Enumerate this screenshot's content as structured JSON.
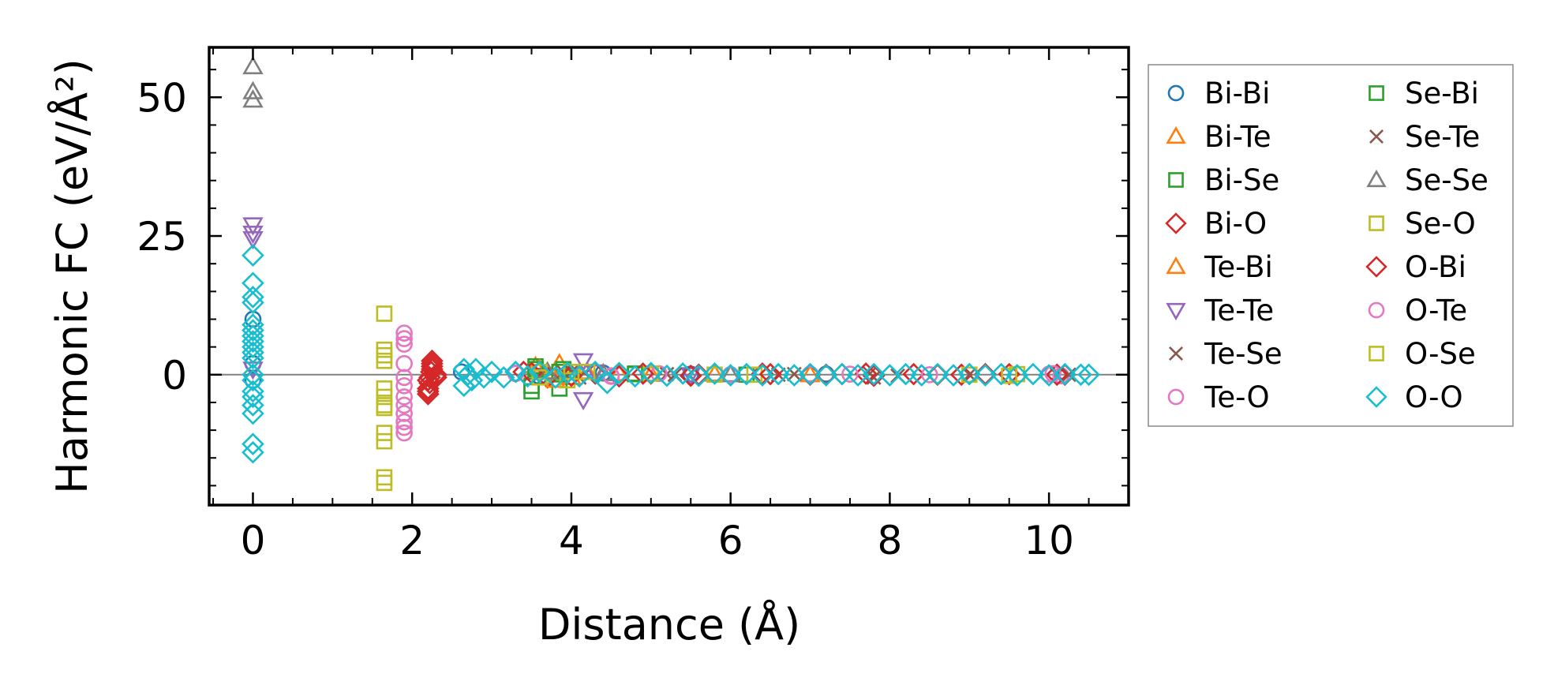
{
  "chart_data": {
    "type": "scatter",
    "title": "",
    "xlabel": "Distance (Å)",
    "ylabel": "Harmonic FC (eV/Å²)",
    "xlim": [
      -0.55,
      11.0
    ],
    "ylim": [
      -23.5,
      59.0
    ],
    "xticks": [
      0,
      2,
      4,
      6,
      8,
      10
    ],
    "yticks": [
      0,
      25,
      50
    ],
    "zero_line": true,
    "legend_position": "outside-right",
    "series": [
      {
        "name": "Bi-Bi",
        "marker": "circle",
        "color": "#1f77b4",
        "points": [
          [
            0,
            10.0
          ],
          [
            0,
            2.0
          ],
          [
            0,
            -1.0
          ],
          [
            2.62,
            0.5
          ],
          [
            3.6,
            -0.3
          ],
          [
            4.4,
            0.3
          ],
          [
            5.5,
            0.1
          ],
          [
            7.2,
            0.1
          ]
        ]
      },
      {
        "name": "Bi-Te",
        "marker": "triangle-up",
        "color": "#ff7f0e",
        "points": [
          [
            3.55,
            1.5
          ],
          [
            3.7,
            0.5
          ],
          [
            3.85,
            2.0
          ],
          [
            4.0,
            -0.5
          ],
          [
            4.6,
            0.2
          ],
          [
            5.8,
            0.1
          ],
          [
            7.0,
            0.0
          ]
        ]
      },
      {
        "name": "Bi-Se",
        "marker": "square",
        "color": "#2ca02c",
        "points": [
          [
            3.5,
            -3.0
          ],
          [
            3.55,
            1.5
          ],
          [
            3.85,
            -2.5
          ],
          [
            3.9,
            1.0
          ],
          [
            4.8,
            0.2
          ],
          [
            6.2,
            0.0
          ]
        ]
      },
      {
        "name": "Bi-O",
        "marker": "diamond",
        "color": "#d62728",
        "points": [
          [
            2.2,
            -3.5
          ],
          [
            2.2,
            -2.5
          ],
          [
            2.22,
            -1.5
          ],
          [
            2.22,
            -0.5
          ],
          [
            2.24,
            0.5
          ],
          [
            2.25,
            1.5
          ],
          [
            2.25,
            2.0
          ],
          [
            2.3,
            0.0
          ],
          [
            3.4,
            0.5
          ],
          [
            3.7,
            -0.5
          ],
          [
            4.3,
            0.2
          ],
          [
            4.6,
            -0.3
          ],
          [
            5.0,
            0.2
          ],
          [
            5.6,
            0.0
          ],
          [
            6.4,
            0.2
          ],
          [
            7.0,
            0.0
          ],
          [
            7.4,
            0.1
          ],
          [
            7.8,
            -0.2
          ],
          [
            8.3,
            0.1
          ],
          [
            8.9,
            0.0
          ],
          [
            9.5,
            0.1
          ],
          [
            10.2,
            0.0
          ]
        ]
      },
      {
        "name": "Te-Bi",
        "marker": "triangle-up",
        "color": "#ff7f0e",
        "points": [
          [
            3.6,
            1.0
          ],
          [
            3.8,
            -1.0
          ],
          [
            4.2,
            0.5
          ],
          [
            5.0,
            0.1
          ]
        ]
      },
      {
        "name": "Te-Te",
        "marker": "triangle-down",
        "color": "#9467bd",
        "points": [
          [
            0,
            27.0
          ],
          [
            0,
            25.5
          ],
          [
            0,
            24.5
          ],
          [
            0,
            1.0
          ],
          [
            4.15,
            2.5
          ],
          [
            4.15,
            -4.5
          ],
          [
            4.3,
            0.5
          ],
          [
            5.5,
            0.0
          ]
        ]
      },
      {
        "name": "Te-Se",
        "marker": "x",
        "color": "#8c564b",
        "points": [
          [
            3.9,
            0.5
          ],
          [
            4.1,
            -0.5
          ],
          [
            5.2,
            0.1
          ],
          [
            6.6,
            0.0
          ],
          [
            7.75,
            0.2
          ],
          [
            8.1,
            -0.2
          ],
          [
            10.1,
            0.0
          ]
        ]
      },
      {
        "name": "Te-O",
        "marker": "circle",
        "color": "#e377c2",
        "points": [
          [
            3.3,
            0.3
          ],
          [
            4.5,
            -0.3
          ],
          [
            5.1,
            0.2
          ],
          [
            6.0,
            0.0
          ],
          [
            7.0,
            0.1
          ],
          [
            8.5,
            0.0
          ],
          [
            10.0,
            0.1
          ],
          [
            10.15,
            -0.2
          ]
        ]
      },
      {
        "name": "Se-Bi",
        "marker": "square",
        "color": "#2ca02c",
        "points": [
          [
            3.5,
            -2.0
          ],
          [
            3.55,
            1.0
          ],
          [
            3.85,
            0.5
          ],
          [
            4.8,
            0.1
          ]
        ]
      },
      {
        "name": "Se-Te",
        "marker": "x",
        "color": "#8c564b",
        "points": [
          [
            4.0,
            0.5
          ],
          [
            5.3,
            0.0
          ],
          [
            6.8,
            0.1
          ],
          [
            7.8,
            -0.5
          ],
          [
            9.0,
            0.0
          ],
          [
            10.25,
            0.0
          ]
        ]
      },
      {
        "name": "Se-Se",
        "marker": "triangle-up",
        "color": "#7f7f7f",
        "points": [
          [
            0,
            55.5
          ],
          [
            0,
            51.0
          ],
          [
            0,
            49.5
          ],
          [
            3.7,
            0.5
          ],
          [
            4.4,
            0.2
          ],
          [
            6.0,
            0.0
          ]
        ]
      },
      {
        "name": "Se-O",
        "marker": "square",
        "color": "#bcbd22",
        "points": [
          [
            1.65,
            11.0
          ],
          [
            1.65,
            4.5
          ],
          [
            1.65,
            2.5
          ],
          [
            1.65,
            -4.0
          ],
          [
            1.65,
            -5.5
          ],
          [
            1.65,
            -10.5
          ],
          [
            1.65,
            -12.0
          ],
          [
            1.65,
            -18.5
          ],
          [
            1.65,
            -19.5
          ],
          [
            3.6,
            0.5
          ],
          [
            3.95,
            -1.0
          ],
          [
            4.2,
            0.5
          ],
          [
            5.0,
            0.2
          ],
          [
            6.3,
            0.0
          ],
          [
            9.0,
            0.0
          ],
          [
            9.6,
            0.1
          ]
        ]
      },
      {
        "name": "O-Bi",
        "marker": "diamond",
        "color": "#d62728",
        "points": [
          [
            2.2,
            -3.0
          ],
          [
            2.2,
            -1.0
          ],
          [
            2.25,
            1.0
          ],
          [
            2.25,
            2.5
          ],
          [
            2.3,
            -0.5
          ],
          [
            3.5,
            0.3
          ],
          [
            4.0,
            -0.2
          ],
          [
            4.9,
            0.2
          ],
          [
            5.5,
            -0.2
          ],
          [
            6.5,
            0.1
          ],
          [
            7.2,
            0.0
          ],
          [
            7.7,
            0.2
          ],
          [
            8.6,
            0.0
          ],
          [
            9.2,
            0.1
          ],
          [
            10.1,
            0.0
          ]
        ]
      },
      {
        "name": "O-Te",
        "marker": "circle",
        "color": "#e377c2",
        "points": [
          [
            1.9,
            7.5
          ],
          [
            1.9,
            6.5
          ],
          [
            1.9,
            5.5
          ],
          [
            1.9,
            2.0
          ],
          [
            1.9,
            -0.5
          ],
          [
            1.9,
            -2.0
          ],
          [
            1.9,
            -4.0
          ],
          [
            1.9,
            -5.5
          ],
          [
            1.9,
            -7.0
          ],
          [
            1.9,
            -8.5
          ],
          [
            1.9,
            -9.5
          ],
          [
            1.9,
            -10.5
          ],
          [
            3.3,
            0.2
          ],
          [
            4.5,
            -0.2
          ],
          [
            6.0,
            0.0
          ],
          [
            7.5,
            0.1
          ],
          [
            10.05,
            0.2
          ]
        ]
      },
      {
        "name": "O-Se",
        "marker": "square",
        "color": "#bcbd22",
        "points": [
          [
            1.65,
            3.5
          ],
          [
            1.65,
            -2.5
          ],
          [
            1.65,
            -6.0
          ],
          [
            3.6,
            -0.5
          ],
          [
            4.0,
            0.5
          ],
          [
            5.8,
            0.0
          ],
          [
            9.5,
            -0.2
          ]
        ]
      },
      {
        "name": "O-O",
        "marker": "diamond",
        "color": "#17becf",
        "points": [
          [
            0,
            21.5
          ],
          [
            0,
            16.5
          ],
          [
            0,
            14.0
          ],
          [
            0,
            13.0
          ],
          [
            0,
            9.0
          ],
          [
            0,
            8.0
          ],
          [
            0,
            7.0
          ],
          [
            0,
            6.0
          ],
          [
            0,
            5.0
          ],
          [
            0,
            4.0
          ],
          [
            0,
            3.0
          ],
          [
            0,
            0.0
          ],
          [
            0,
            -1.0
          ],
          [
            0,
            -3.0
          ],
          [
            0,
            -4.0
          ],
          [
            0,
            -5.5
          ],
          [
            0,
            -7.0
          ],
          [
            0,
            -12.5
          ],
          [
            0,
            -14.0
          ],
          [
            2.65,
            1.0
          ],
          [
            2.65,
            -2.0
          ],
          [
            2.7,
            0.0
          ],
          [
            2.75,
            -1.0
          ],
          [
            2.8,
            1.0
          ],
          [
            2.9,
            -0.5
          ],
          [
            3.0,
            0.5
          ],
          [
            3.15,
            -0.5
          ],
          [
            3.3,
            0.5
          ],
          [
            3.45,
            -0.3
          ],
          [
            3.6,
            0.5
          ],
          [
            3.8,
            -0.5
          ],
          [
            3.95,
            0.3
          ],
          [
            4.1,
            -0.3
          ],
          [
            4.3,
            0.5
          ],
          [
            4.45,
            -1.5
          ],
          [
            4.6,
            0.3
          ],
          [
            4.8,
            -0.3
          ],
          [
            5.0,
            0.3
          ],
          [
            5.2,
            -0.2
          ],
          [
            5.4,
            0.2
          ],
          [
            5.6,
            -0.2
          ],
          [
            5.8,
            0.2
          ],
          [
            6.0,
            -0.1
          ],
          [
            6.2,
            0.1
          ],
          [
            6.4,
            -0.1
          ],
          [
            6.6,
            0.1
          ],
          [
            6.8,
            -0.1
          ],
          [
            7.0,
            0.1
          ],
          [
            7.2,
            -0.1
          ],
          [
            7.4,
            0.1
          ],
          [
            7.6,
            -0.1
          ],
          [
            7.8,
            0.1
          ],
          [
            8.0,
            -0.1
          ],
          [
            8.2,
            0.1
          ],
          [
            8.4,
            -0.1
          ],
          [
            8.6,
            0.1
          ],
          [
            8.8,
            -0.1
          ],
          [
            9.0,
            0.1
          ],
          [
            9.2,
            -0.1
          ],
          [
            9.4,
            0.1
          ],
          [
            9.6,
            -0.1
          ],
          [
            9.8,
            0.1
          ],
          [
            10.0,
            -0.1
          ],
          [
            10.2,
            0.1
          ],
          [
            10.4,
            0.0
          ],
          [
            10.5,
            0.0
          ]
        ]
      }
    ]
  }
}
